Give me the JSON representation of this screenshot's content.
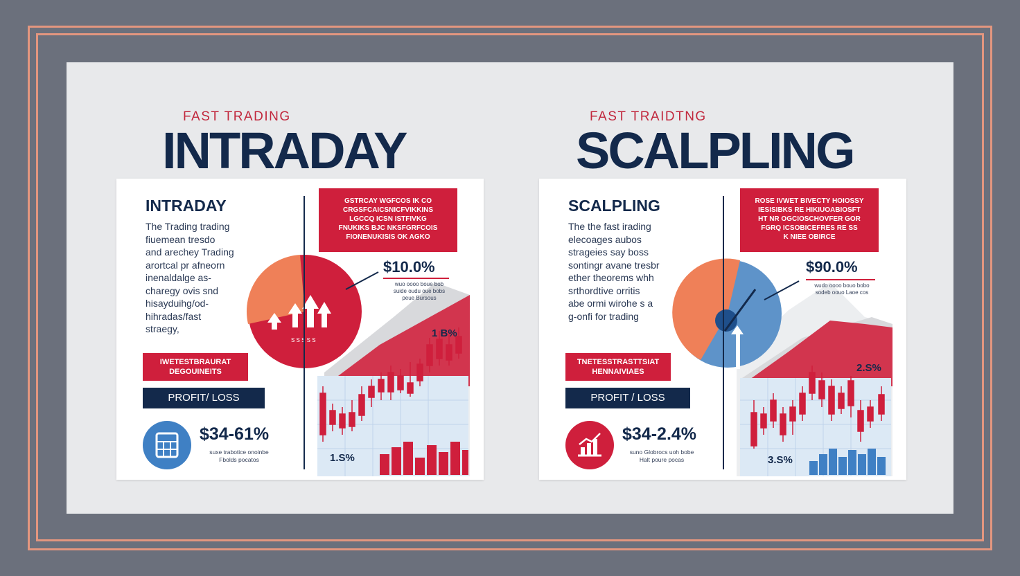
{
  "colors": {
    "red": "#cf1f3c",
    "navy": "#13294b",
    "orange": "#ef8058",
    "blue": "#3f80c4",
    "frame": "#e3967f"
  },
  "left": {
    "kicker": "FAST TRADING",
    "headline": "INTRADAY",
    "card_title": "INTRADAY",
    "body_lines": [
      "The Trading trading",
      "fiuemean tresdo",
      "and arechey Trading",
      "arortcal pr afneorn",
      "inenaldalge as-",
      "charegy ovis snd",
      "hisayduihg/od-",
      "hihradas/fast",
      "straegy,"
    ],
    "red_box_lines": [
      "GSTRCAY WGFCOS IK CO",
      "CRGSFCAICSNICFVIKKINS",
      "LGCCQ ICSN ISTFIVKG",
      "FNUKIKS BJC NKSFGRFCOIS",
      "FIONENUKISIS OK AGKO"
    ],
    "red_label": "IWETESTBRAURAT DEGOUINEITS",
    "pl_label": "PROFIT/ LOSS",
    "icon": "calculator-icon",
    "stat_value": "$34-61%",
    "stat_note": "suxe trabotice onoinbe Fbolds pocatos",
    "percent": "$10.0%",
    "percent_note": "wuo oooo boue bob suide oudu oue bobs peue Bursous",
    "mini_stat_top": "1 B%",
    "mini_stat_bottom": "1.S%"
  },
  "right": {
    "kicker": "FAST TRAIDTNG",
    "headline": "SCALPLING",
    "card_title": "SCALPLING",
    "body_lines": [
      "The the fast irading",
      "elecoages aubos",
      "strageies say boss",
      "sontingr avane tresbr",
      "ether theorems whh",
      "srthordtive orritis",
      "abe ormi wirohe s a",
      "g-onfi for trading"
    ],
    "red_box_lines": [
      "ROSE IVWET BIVECTY HOIOSSY",
      "IESISIBKS RE HIKIUOABIOSFT",
      "HT NR OGCIOSCHOVFER GOR",
      "FGRQ ICSOBICEFRES RE SS",
      "K NIEE OBIRCE"
    ],
    "red_label": "TNETESSTRASTTSIAT HENNAIVIAES",
    "pl_label": "PROFIT / LOSS",
    "icon": "bar-chart-icon",
    "stat_value": "$34-2.4%",
    "stat_note": "suno Globrocs uoh bobe Halt poure pocas",
    "percent": "$90.0%",
    "percent_note": "wudo oooo bouo bobo sodeb oouo Laoe cos",
    "mini_stat_top": "2.S%",
    "mini_stat_bottom": "3.S%"
  }
}
